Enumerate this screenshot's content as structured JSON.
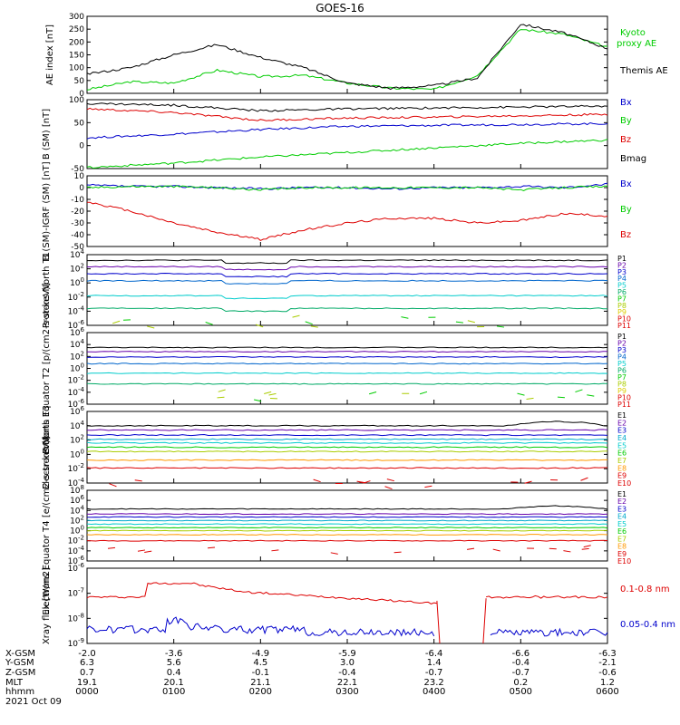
{
  "title": "GOES-16",
  "colors": {
    "black": "#000000",
    "red": "#dd0000",
    "green": "#00cc00",
    "blue": "#0000cc",
    "cyan": "#00cccc",
    "purple": "#6600aa",
    "orange": "#ff9900",
    "yellow": "#ddcc00"
  },
  "chart_data": [
    {
      "type": "line",
      "name": "ae",
      "ylabel": "AE index [nT]",
      "ylim": [
        0,
        300
      ],
      "yticks": [
        "300",
        "250",
        "200",
        "150",
        "100",
        "50",
        "0"
      ],
      "ytick_values": [
        300,
        250,
        200,
        150,
        100,
        50,
        0
      ],
      "x": [
        0,
        30,
        60,
        90,
        120,
        150,
        180,
        210,
        240,
        270,
        300,
        330,
        360
      ],
      "series": [
        {
          "name": "Kyoto proxy AE",
          "color": "#00cc00",
          "values": [
            15,
            45,
            40,
            90,
            65,
            70,
            40,
            20,
            15,
            70,
            250,
            230,
            180
          ]
        },
        {
          "name": "Themis AE",
          "color": "#000000",
          "values": [
            75,
            100,
            150,
            190,
            140,
            100,
            40,
            20,
            30,
            60,
            270,
            235,
            175
          ]
        }
      ],
      "legend": [
        "Kyoto",
        "proxy AE",
        "Themis AE"
      ]
    },
    {
      "type": "line",
      "name": "b_sm",
      "ylabel": "B (SM) [nT]",
      "ylim": [
        -50,
        100
      ],
      "yticks": [
        "100",
        "50",
        "0",
        "-50"
      ],
      "ytick_values": [
        100,
        50,
        0,
        -50
      ],
      "x": [
        0,
        60,
        120,
        180,
        240,
        300,
        360
      ],
      "series": [
        {
          "name": "Bx",
          "color": "#0000cc",
          "values": [
            17,
            25,
            35,
            42,
            44,
            46,
            48
          ]
        },
        {
          "name": "By",
          "color": "#00cc00",
          "values": [
            -48,
            -38,
            -25,
            -15,
            -5,
            5,
            12
          ]
        },
        {
          "name": "Bz",
          "color": "#dd0000",
          "values": [
            80,
            72,
            55,
            60,
            62,
            65,
            68
          ]
        },
        {
          "name": "Bmag",
          "color": "#000000",
          "values": [
            92,
            88,
            76,
            80,
            82,
            84,
            86
          ]
        }
      ],
      "legend": [
        "Bx",
        "By",
        "Bz",
        "Bmag"
      ]
    },
    {
      "type": "line",
      "name": "b_igrf",
      "ylabel": "B (SM)-IGRF (SM) [nT]",
      "ylim": [
        -50,
        10
      ],
      "yticks": [
        "10",
        "0",
        "-10",
        "-20",
        "-30",
        "-40",
        "-50"
      ],
      "ytick_values": [
        10,
        0,
        -10,
        -20,
        -30,
        -40,
        -50
      ],
      "x": [
        0,
        30,
        60,
        90,
        120,
        150,
        180,
        210,
        240,
        270,
        300,
        330,
        360
      ],
      "series": [
        {
          "name": "Bx",
          "color": "#0000cc",
          "values": [
            2,
            1,
            1,
            0,
            -1,
            0,
            0,
            -1,
            0,
            0,
            1,
            0,
            3
          ]
        },
        {
          "name": "By",
          "color": "#00cc00",
          "values": [
            0,
            1,
            1,
            0,
            -2,
            0,
            0,
            0,
            0,
            0,
            -2,
            0,
            1
          ]
        },
        {
          "name": "Bz",
          "color": "#dd0000",
          "values": [
            -12,
            -20,
            -30,
            -38,
            -44,
            -36,
            -30,
            -26,
            -26,
            -30,
            -28,
            -22,
            -24
          ]
        }
      ],
      "legend": [
        "Bx",
        "By",
        "Bz"
      ]
    },
    {
      "type": "line",
      "name": "protons_t1",
      "ylabel": "Protons North T1",
      "log": true,
      "ylim": [
        -6,
        4
      ],
      "yticks": [
        "10^4",
        "10^2",
        "10^0",
        "10^-2",
        "10^-4",
        "10^-6"
      ],
      "ytick_values": [
        4,
        2,
        0,
        -2,
        -4,
        -6
      ],
      "channels": [
        "P1",
        "P2",
        "P3",
        "P4",
        "P5",
        "P6",
        "P7",
        "P8",
        "P9",
        "P10",
        "P11"
      ],
      "channel_colors": [
        "#000000",
        "#6600aa",
        "#0000cc",
        "#0066cc",
        "#00cccc",
        "#00aa66",
        "#00cc00",
        "#aacc00",
        "#ddcc00",
        "#dd0000",
        "#dd0000"
      ],
      "levels": [
        3.2,
        2.3,
        1.3,
        0.3,
        -1.8,
        -3.6
      ]
    },
    {
      "type": "line",
      "name": "protons_t2",
      "ylabel": "Protons Equator T2 [p/(cm2-s-sr-keV)]",
      "log": true,
      "ylim": [
        -6,
        6
      ],
      "yticks": [
        "10^6",
        "10^4",
        "10^2",
        "10^0",
        "10^-2",
        "10^-4",
        "10^-6"
      ],
      "ytick_values": [
        6,
        4,
        2,
        0,
        -2,
        -4,
        -6
      ],
      "channels": [
        "P1",
        "P2",
        "P3",
        "P4",
        "P5",
        "P6",
        "P7",
        "P8",
        "P9",
        "P10",
        "P11"
      ],
      "channel_colors": [
        "#000000",
        "#6600aa",
        "#0000cc",
        "#0066cc",
        "#00cccc",
        "#00aa66",
        "#00cc00",
        "#aacc00",
        "#ddcc00",
        "#dd0000",
        "#dd0000"
      ],
      "levels": [
        3.5,
        2.8,
        1.9,
        0.8,
        -0.8,
        -2.6
      ]
    },
    {
      "type": "line",
      "name": "electrons_t3",
      "ylabel": "Electrons North T3",
      "log": true,
      "ylim": [
        -4,
        6
      ],
      "yticks": [
        "10^6",
        "10^4",
        "10^2",
        "10^0",
        "10^-2",
        "10^-4"
      ],
      "ytick_values": [
        6,
        4,
        2,
        0,
        -2,
        -4
      ],
      "channels": [
        "E1",
        "E2",
        "E3",
        "E4",
        "E5",
        "E6",
        "E7",
        "E8",
        "E9",
        "E10"
      ],
      "channel_colors": [
        "#000000",
        "#6600aa",
        "#0000cc",
        "#00aacc",
        "#00cccc",
        "#00cc00",
        "#aacc00",
        "#ff9900",
        "#dd0000",
        "#dd0000"
      ],
      "levels": [
        4.0,
        3.4,
        2.7,
        2.1,
        1.6,
        1.0,
        0.4,
        -0.8,
        -1.9
      ]
    },
    {
      "type": "line",
      "name": "electrons_t4",
      "ylabel": "Electrons Equator T4 [e/(cm2-s-sr-keV)]",
      "log": true,
      "ylim": [
        -6,
        8
      ],
      "yticks": [
        "10^8",
        "10^6",
        "10^4",
        "10^2",
        "10^0",
        "10^-2",
        "10^-4",
        "10^-6"
      ],
      "ytick_values": [
        8,
        6,
        4,
        2,
        0,
        -2,
        -4,
        -6
      ],
      "channels": [
        "E1",
        "E2",
        "E3",
        "E4",
        "E5",
        "E6",
        "E7",
        "E8",
        "E9",
        "E10"
      ],
      "channel_colors": [
        "#000000",
        "#6600aa",
        "#0000cc",
        "#00aacc",
        "#00cccc",
        "#00cc00",
        "#aacc00",
        "#ff9900",
        "#dd0000",
        "#dd0000"
      ],
      "levels": [
        4.3,
        3.3,
        2.7,
        2.0,
        1.3,
        0.6,
        0.0,
        -0.8,
        -2.0
      ]
    },
    {
      "type": "line",
      "name": "xray",
      "ylabel": "Xray flux [W/m2]",
      "log": true,
      "ylim": [
        -9,
        -6
      ],
      "yticks": [
        "10^-6",
        "10^-7",
        "10^-8",
        "10^-9"
      ],
      "ytick_values": [
        -6,
        -7,
        -8,
        -9
      ],
      "series": [
        {
          "name": "0.1-0.8 nm",
          "color": "#dd0000"
        },
        {
          "name": "0.05-0.4 nm",
          "color": "#0000cc"
        }
      ],
      "legend": [
        "0.1-0.8 nm",
        "0.05-0.4 nm"
      ]
    }
  ],
  "ephemeris": {
    "labels": [
      "X-GSM",
      "Y-GSM",
      "Z-GSM",
      "MLT",
      "hhmm"
    ],
    "date": "2021 Oct 09",
    "columns": [
      [
        "-2.0",
        "6.3",
        "0.7",
        "19.1",
        "0000"
      ],
      [
        "-3.6",
        "5.6",
        "0.4",
        "20.1",
        "0100"
      ],
      [
        "-4.9",
        "4.5",
        "-0.1",
        "21.1",
        "0200"
      ],
      [
        "-5.9",
        "3.0",
        "-0.4",
        "22.1",
        "0300"
      ],
      [
        "-6.4",
        "1.4",
        "-0.7",
        "23.2",
        "0400"
      ],
      [
        "-6.6",
        "-0.4",
        "-0.7",
        "0.2",
        "0500"
      ],
      [
        "-6.3",
        "-2.1",
        "-0.6",
        "1.2",
        "0600"
      ]
    ]
  }
}
